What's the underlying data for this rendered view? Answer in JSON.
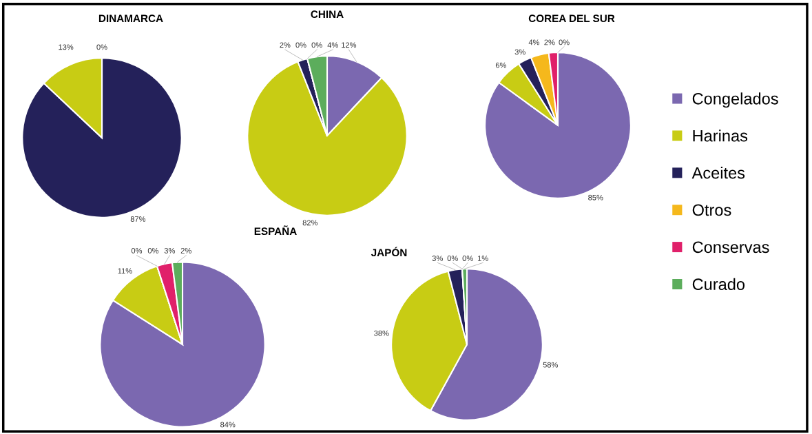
{
  "chart_data": [
    {
      "type": "pie",
      "title": "DINAMARCA",
      "categories": [
        null,
        null,
        null
      ],
      "values": [
        87,
        13,
        0
      ],
      "colors": [
        "#24215a",
        "#c8cc14",
        "#7b68b0"
      ],
      "value_labels": [
        "87%",
        "13%",
        "0%"
      ]
    },
    {
      "type": "pie",
      "title": "CHINA",
      "categories": [
        null,
        null,
        null,
        null,
        null,
        null
      ],
      "values": [
        12,
        82,
        2,
        0,
        0,
        4
      ],
      "colors": [
        "#7b68b0",
        "#c8cc14",
        "#24215a",
        "#f5b81c",
        "#e0206a",
        "#5cad5c"
      ],
      "value_labels": [
        "12%",
        "82%",
        "2%",
        "0%",
        "0%",
        "4%"
      ]
    },
    {
      "type": "pie",
      "title": "COREA DEL SUR",
      "categories": [
        "Congelados",
        "Harinas",
        "Aceites",
        "Otros",
        "Conservas",
        "Curado"
      ],
      "values": [
        85,
        6,
        3,
        4,
        2,
        0
      ],
      "colors": [
        "#7b68b0",
        "#c8cc14",
        "#24215a",
        "#f5b81c",
        "#e0206a",
        "#5cad5c"
      ],
      "value_labels": [
        "85%",
        "6%",
        "3%",
        "4%",
        "2%",
        "0%"
      ],
      "legend": "right"
    },
    {
      "type": "pie",
      "title": "ESPAÑA",
      "categories": [
        null,
        null,
        null,
        null,
        null,
        null
      ],
      "values": [
        84,
        11,
        0,
        0,
        3,
        2
      ],
      "colors": [
        "#7b68b0",
        "#c8cc14",
        "#24215a",
        "#f5b81c",
        "#e0206a",
        "#5cad5c"
      ],
      "value_labels": [
        "84%",
        "11%",
        "0%",
        "0%",
        "3%",
        "2%"
      ]
    },
    {
      "type": "pie",
      "title": "JAPÓN",
      "categories": [
        null,
        null,
        null,
        null,
        null,
        null
      ],
      "values": [
        58,
        38,
        3,
        0,
        0,
        1
      ],
      "colors": [
        "#7b68b0",
        "#c8cc14",
        "#24215a",
        "#f5b81c",
        "#e0206a",
        "#5cad5c"
      ],
      "value_labels": [
        "58%",
        "38%",
        "3%",
        "0%",
        "0%",
        "1%"
      ]
    }
  ]
}
